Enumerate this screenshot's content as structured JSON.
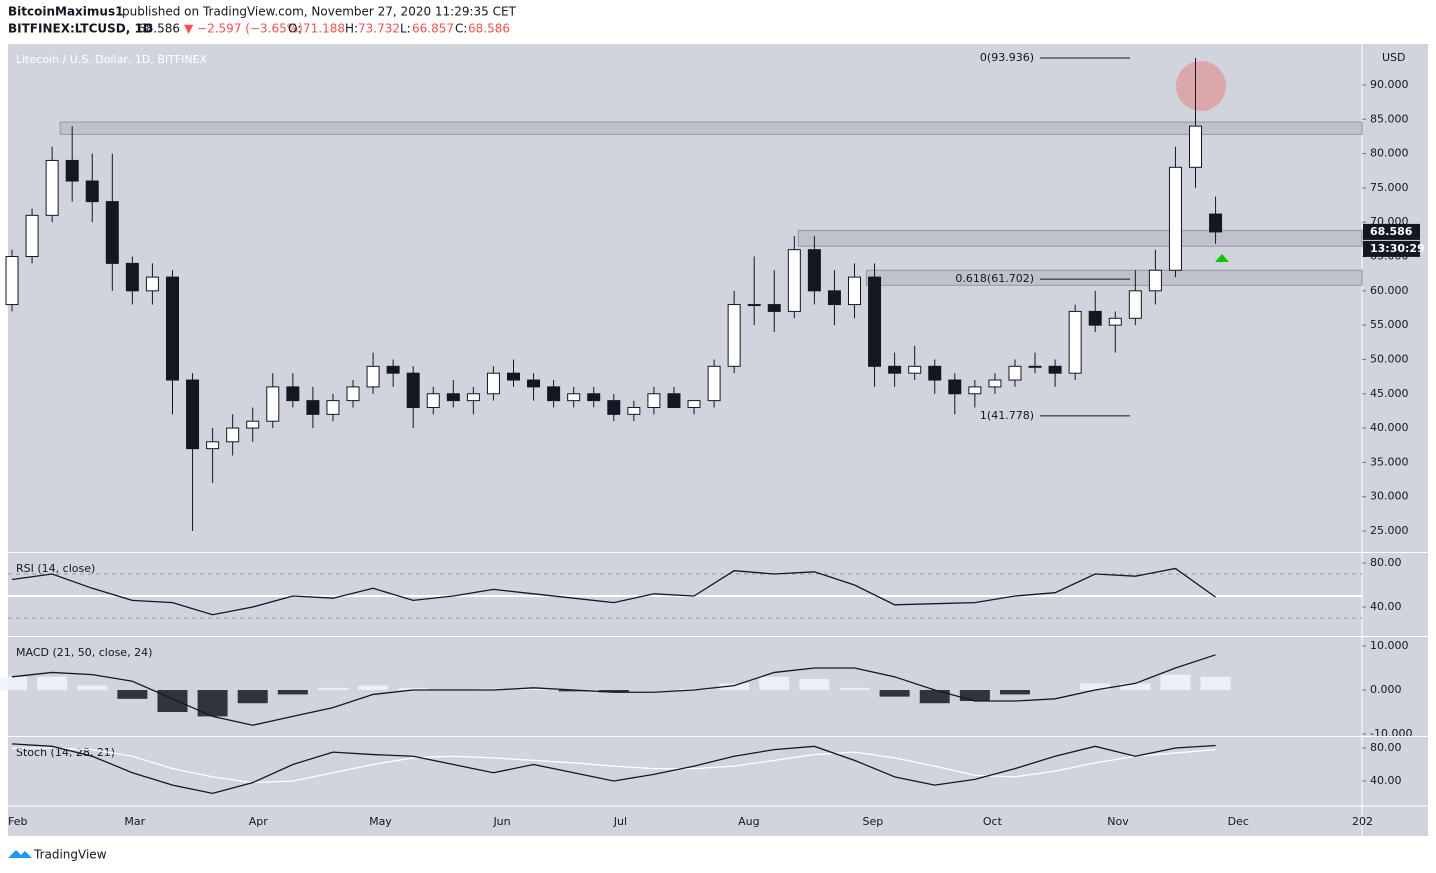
{
  "header": {
    "author": "BitcoinMaximus1",
    "published": "published on TradingView.com, November 27, 2020 11:29:35 CET",
    "symbol": "BITFINEX:LTCUSD, 1D",
    "price": "68.586",
    "change": "▼ −2.597 (−3.65%)",
    "open_label": "O:",
    "open": "71.188",
    "high_label": "H:",
    "high": "73.732",
    "low_label": "L:",
    "low": "66.857",
    "close_label": "C:",
    "close": "68.586"
  },
  "footer": {
    "brand": "TradingView"
  },
  "chart_data": [
    {
      "type": "candlestick",
      "title": "Litecoin / U.S. Dollar, 1D, BITFINEX",
      "currency": "USD",
      "timer": "13:30:29",
      "x": [
        0,
        5,
        10,
        15,
        20,
        25,
        30,
        35,
        40,
        45,
        50,
        55,
        60,
        65,
        70,
        75,
        80,
        85,
        90,
        95,
        100,
        105,
        110,
        115,
        120,
        125,
        130,
        135,
        140,
        145,
        150,
        155,
        160,
        165,
        170,
        175,
        180,
        185,
        190,
        195,
        200,
        205,
        210,
        215,
        220,
        225,
        230,
        235,
        240,
        245,
        250,
        255,
        260,
        265,
        270,
        275,
        280,
        285,
        290,
        295,
        300
      ],
      "open": [
        58,
        65,
        71,
        79,
        76,
        73,
        64,
        60,
        62,
        47,
        37,
        38,
        40,
        41,
        46,
        44,
        42,
        44,
        46,
        49,
        48,
        43,
        45,
        44,
        45,
        48,
        47,
        46,
        44,
        45,
        44,
        42,
        43,
        45,
        43,
        44,
        49,
        58,
        58,
        57,
        66,
        60,
        58,
        62,
        49,
        48,
        49,
        47,
        45,
        46,
        47,
        49,
        49,
        48,
        57,
        55,
        56,
        60,
        63,
        78,
        71.188
      ],
      "high": [
        66,
        72,
        81,
        84,
        80,
        80,
        65,
        64,
        63,
        48,
        40,
        42,
        43,
        48,
        48,
        46,
        45,
        47,
        51,
        50,
        49,
        46,
        47,
        46,
        49,
        50,
        48,
        47,
        46,
        46,
        45,
        44,
        46,
        46,
        44,
        50,
        60,
        65,
        63,
        68,
        68,
        63,
        64,
        64,
        51,
        52,
        50,
        48,
        47,
        48,
        50,
        51,
        50,
        58,
        60,
        57,
        63,
        66,
        81,
        93.936,
        73.732
      ],
      "low": [
        57,
        64,
        70,
        73,
        70,
        60,
        58,
        58,
        42,
        25,
        32,
        36,
        38,
        40,
        43,
        40,
        41,
        43,
        45,
        46,
        40,
        42,
        43,
        42,
        44,
        46,
        44,
        43,
        43,
        43,
        41,
        41,
        42,
        43,
        42,
        43,
        48,
        55,
        54,
        56,
        58,
        55,
        56,
        46,
        46,
        47,
        45,
        42,
        43,
        45,
        46,
        48,
        46,
        47,
        54,
        51,
        55,
        58,
        62,
        75,
        66.857
      ],
      "close": [
        65,
        71,
        79,
        76,
        73,
        64,
        60,
        62,
        47,
        37,
        38,
        40,
        41,
        46,
        44,
        42,
        44,
        46,
        49,
        48,
        43,
        45,
        44,
        45,
        48,
        47,
        46,
        44,
        45,
        44,
        42,
        43,
        45,
        43,
        44,
        49,
        58,
        58,
        57,
        66,
        60,
        58,
        62,
        49,
        48,
        49,
        47,
        45,
        46,
        47,
        49,
        49,
        48,
        57,
        55,
        56,
        60,
        63,
        78,
        84,
        68.586
      ],
      "xlim": [
        -1,
        336.5
      ],
      "xticks": [
        {
          "value": 0,
          "label": "Feb"
        },
        {
          "value": 29,
          "label": "Mar"
        },
        {
          "value": 60,
          "label": "Apr"
        },
        {
          "value": 90,
          "label": "May"
        },
        {
          "value": 121,
          "label": "Jun"
        },
        {
          "value": 151,
          "label": "Jul"
        },
        {
          "value": 182,
          "label": "Aug"
        },
        {
          "value": 213,
          "label": "Sep"
        },
        {
          "value": 243,
          "label": "Oct"
        },
        {
          "value": 274,
          "label": "Nov"
        },
        {
          "value": 304,
          "label": "Dec"
        },
        {
          "value": 335,
          "label": "202"
        }
      ],
      "ylim": [
        21.94,
        95.97
      ],
      "yticks": [
        {
          "value": 25,
          "label": "25.000"
        },
        {
          "value": 30,
          "label": "30.000"
        },
        {
          "value": 35,
          "label": "35.000"
        },
        {
          "value": 40,
          "label": "40.000"
        },
        {
          "value": 45,
          "label": "45.000"
        },
        {
          "value": 50,
          "label": "50.000"
        },
        {
          "value": 55,
          "label": "55.000"
        },
        {
          "value": 60,
          "label": "60.000"
        },
        {
          "value": 65,
          "label": "65.000"
        },
        {
          "value": 70,
          "label": "70.000"
        },
        {
          "value": 75,
          "label": "75.000"
        },
        {
          "value": 80,
          "label": "80.000"
        },
        {
          "value": 85,
          "label": "85.000"
        },
        {
          "value": 90,
          "label": "90.000"
        }
      ],
      "zones": [
        {
          "from": 12,
          "low": 82.8,
          "high": 84.6
        },
        {
          "from": 196,
          "low": 66.5,
          "high": 68.8
        },
        {
          "from": 213,
          "low": 60.8,
          "high": 63
        }
      ],
      "fib": [
        {
          "label": "0(93.936)",
          "value": 93.936
        },
        {
          "label": "0.618(61.702)",
          "value": 61.702
        },
        {
          "label": "1(41.778)",
          "value": 41.778
        }
      ]
    },
    {
      "type": "line",
      "title": "RSI (14, close)",
      "ylim": [
        13.64,
        89.09
      ],
      "yticks": [
        {
          "value": 80,
          "label": "80.00"
        },
        {
          "value": 40,
          "label": "40.00"
        }
      ],
      "bands": [
        30,
        70
      ],
      "midline": 50,
      "x": [
        0,
        10,
        20,
        30,
        40,
        50,
        60,
        70,
        80,
        90,
        100,
        110,
        120,
        130,
        140,
        150,
        160,
        170,
        180,
        190,
        200,
        210,
        220,
        230,
        240,
        250,
        260,
        270,
        280,
        290,
        300
      ],
      "series": [
        {
          "kind": "line",
          "color": "#131722",
          "values": [
            65,
            70,
            57,
            46,
            44,
            33,
            40,
            50,
            48,
            57,
            46,
            50,
            56,
            52,
            48,
            44,
            52,
            50,
            73,
            70,
            72,
            60,
            42,
            43,
            44,
            50,
            53,
            70,
            68,
            75,
            49
          ]
        }
      ]
    },
    {
      "type": "combo",
      "title": "MACD (21, 50, close, 24)",
      "ylim": [
        -10.45,
        12.05
      ],
      "yticks": [
        {
          "value": 10,
          "label": "10.000"
        },
        {
          "value": 0,
          "label": "0.000"
        },
        {
          "value": -10,
          "label": "-10.000"
        }
      ],
      "x": [
        0,
        10,
        20,
        30,
        40,
        50,
        60,
        70,
        80,
        90,
        100,
        110,
        120,
        130,
        140,
        150,
        160,
        170,
        180,
        190,
        200,
        210,
        220,
        230,
        240,
        250,
        260,
        270,
        280,
        290,
        300
      ],
      "series": [
        {
          "kind": "histogram",
          "color": "#f0f3fa",
          "values": [
            3,
            3,
            1,
            -2,
            -5,
            -6,
            -3,
            -1,
            0.5,
            1,
            0.5,
            0,
            0.3,
            0.3,
            -0.3,
            -0.5,
            0,
            0.3,
            1.5,
            3,
            2.5,
            0.5,
            -1.5,
            -3,
            -2.5,
            -1,
            0,
            1.5,
            1.5,
            3.5,
            3
          ]
        },
        {
          "kind": "line",
          "color": "#131722",
          "values": [
            3,
            4,
            3.5,
            2,
            -2,
            -6,
            -8,
            -6,
            -4,
            -1,
            0,
            0,
            0,
            0.5,
            0,
            -0.5,
            -0.5,
            0,
            1,
            4,
            5,
            5,
            3,
            0,
            -2.5,
            -2.5,
            -2,
            0,
            1.5,
            5,
            8
          ]
        }
      ]
    },
    {
      "type": "line",
      "title": "Stoch (14, 28, 21)",
      "ylim": [
        9.7,
        93.3
      ],
      "yticks": [
        {
          "value": 80,
          "label": "80.00"
        },
        {
          "value": 40,
          "label": "40.00"
        }
      ],
      "x": [
        0,
        10,
        20,
        30,
        40,
        50,
        60,
        70,
        80,
        90,
        100,
        110,
        120,
        130,
        140,
        150,
        160,
        170,
        180,
        190,
        200,
        210,
        220,
        230,
        240,
        250,
        260,
        270,
        280,
        290,
        300
      ],
      "series": [
        {
          "kind": "line",
          "color": "#ffffff",
          "values": [
            80,
            80,
            78,
            70,
            55,
            45,
            38,
            40,
            50,
            60,
            68,
            70,
            68,
            65,
            62,
            58,
            55,
            55,
            58,
            65,
            72,
            75,
            68,
            58,
            47,
            45,
            52,
            62,
            70,
            74,
            78
          ]
        },
        {
          "kind": "line",
          "color": "#131722",
          "values": [
            85,
            82,
            70,
            50,
            35,
            25,
            38,
            60,
            75,
            72,
            70,
            60,
            50,
            60,
            50,
            40,
            48,
            58,
            70,
            78,
            82,
            65,
            45,
            35,
            42,
            55,
            70,
            82,
            70,
            80,
            83
          ]
        }
      ]
    }
  ]
}
